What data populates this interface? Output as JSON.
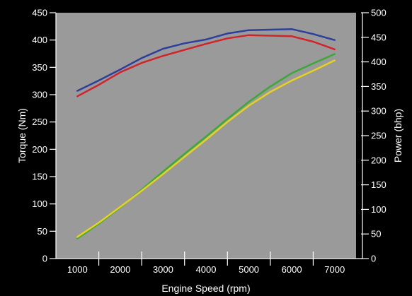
{
  "chart_data": {
    "type": "line",
    "title": "",
    "xlabel": "Engine Speed (rpm)",
    "ylabel": "Torque (Nm)",
    "y2label": "Power (bhp)",
    "xlim": [
      500,
      7500
    ],
    "ylim": [
      0,
      450
    ],
    "y2lim": [
      0,
      500
    ],
    "xticks": [
      1000,
      2000,
      3000,
      4000,
      5000,
      6000,
      7000
    ],
    "yticks": [
      0,
      50,
      100,
      150,
      200,
      250,
      300,
      350,
      400,
      450
    ],
    "y2ticks": [
      0,
      50,
      100,
      150,
      200,
      250,
      300,
      350,
      400,
      450,
      500
    ],
    "grid": false,
    "legend": "none",
    "plot_background": "#9a9a9a",
    "page_background": "#000000",
    "series": [
      {
        "axis": "left",
        "color": "#2b3f9c",
        "x": [
          1000,
          1500,
          2000,
          2500,
          3000,
          3500,
          4000,
          4500,
          5000,
          5500,
          6000,
          6500,
          7000
        ],
        "values": [
          307,
          326,
          346,
          367,
          384,
          394,
          401,
          412,
          418,
          419,
          420,
          411,
          400
        ]
      },
      {
        "axis": "left",
        "color": "#d2232a",
        "x": [
          1000,
          1500,
          2000,
          2500,
          3000,
          3500,
          4000,
          4500,
          5000,
          5500,
          6000,
          6500,
          7000
        ],
        "values": [
          297,
          318,
          341,
          358,
          371,
          382,
          393,
          403,
          409,
          408,
          407,
          397,
          383
        ]
      },
      {
        "axis": "right",
        "color": "#3aa935",
        "x": [
          1000,
          1500,
          2000,
          2500,
          3000,
          3500,
          4000,
          4500,
          5000,
          5500,
          6000,
          6500,
          7000
        ],
        "values": [
          41,
          71,
          104,
          140,
          177,
          213,
          248,
          284,
          319,
          350,
          377,
          397,
          416
        ]
      },
      {
        "axis": "right",
        "color": "#e6d21c",
        "x": [
          1000,
          1500,
          2000,
          2500,
          3000,
          3500,
          4000,
          4500,
          5000,
          5500,
          6000,
          6500,
          7000
        ],
        "values": [
          44,
          73,
          105,
          138,
          172,
          207,
          242,
          278,
          311,
          339,
          362,
          382,
          403
        ]
      }
    ]
  }
}
